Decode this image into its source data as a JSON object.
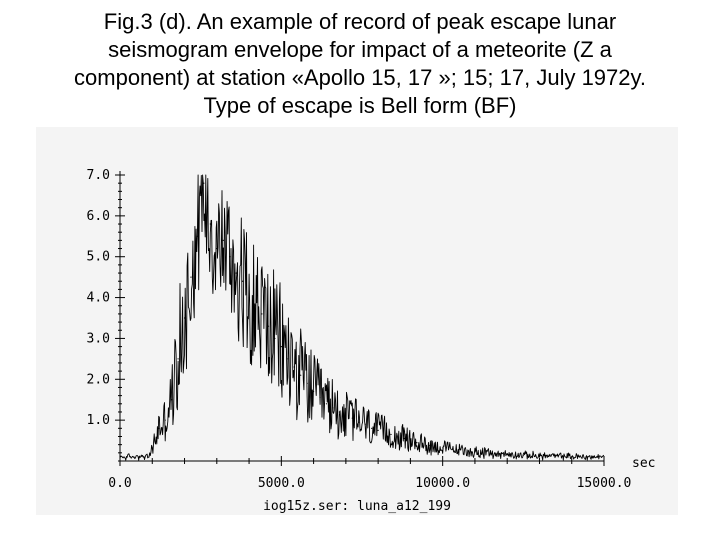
{
  "caption": {
    "line1": "Fig.3 (d). An example of record of peak escape lunar",
    "line2": "seismogram envelope for impact of a meteorite (Z a",
    "line3": "component) at station «Apollo 15, 17 »; 15; 17, July 1972y.",
    "line4": "Type of escape is Bell form (BF)"
  },
  "chart_data": {
    "type": "line",
    "title": "",
    "xlabel": "sec",
    "ylabel": "",
    "footer": "iog15z.ser:  luna_a12_199",
    "xlim": [
      0,
      15000
    ],
    "ylim": [
      0,
      7.0
    ],
    "x_ticks": [
      "0.0",
      "5000.0",
      "10000.0",
      "15000.0"
    ],
    "y_ticks": [
      "1.0",
      "2.0",
      "3.0",
      "4.0",
      "5.0",
      "6.0",
      "7.0"
    ],
    "series": [
      {
        "color": "#000000",
        "x": [
          0,
          600,
          900,
          1000,
          1200,
          1400,
          1600,
          1800,
          2000,
          2200,
          2400,
          2600,
          2800,
          3000,
          3200,
          3400,
          3600,
          3800,
          4000,
          4200,
          4400,
          4600,
          4800,
          5000,
          5200,
          5400,
          5600,
          5800,
          6000,
          6200,
          6400,
          6600,
          6800,
          7000,
          7200,
          7400,
          7600,
          7800,
          8000,
          8400,
          8800,
          9200,
          9600,
          10000,
          10500,
          11000,
          11500,
          12000,
          12500,
          13000,
          13500,
          14000,
          14500,
          15000
        ],
        "values": [
          0.1,
          0.1,
          0.1,
          0.3,
          0.8,
          1.0,
          1.5,
          2.5,
          3.5,
          4.5,
          5.5,
          6.8,
          5.8,
          5.2,
          5.4,
          5.0,
          4.6,
          4.4,
          4.0,
          3.8,
          3.6,
          3.3,
          3.0,
          2.8,
          2.5,
          2.3,
          2.1,
          1.9,
          1.7,
          1.55,
          1.4,
          1.3,
          1.2,
          1.1,
          1.05,
          0.95,
          0.9,
          0.8,
          0.75,
          0.65,
          0.55,
          0.45,
          0.38,
          0.32,
          0.26,
          0.22,
          0.18,
          0.16,
          0.14,
          0.13,
          0.12,
          0.11,
          0.1,
          0.1
        ]
      }
    ]
  }
}
